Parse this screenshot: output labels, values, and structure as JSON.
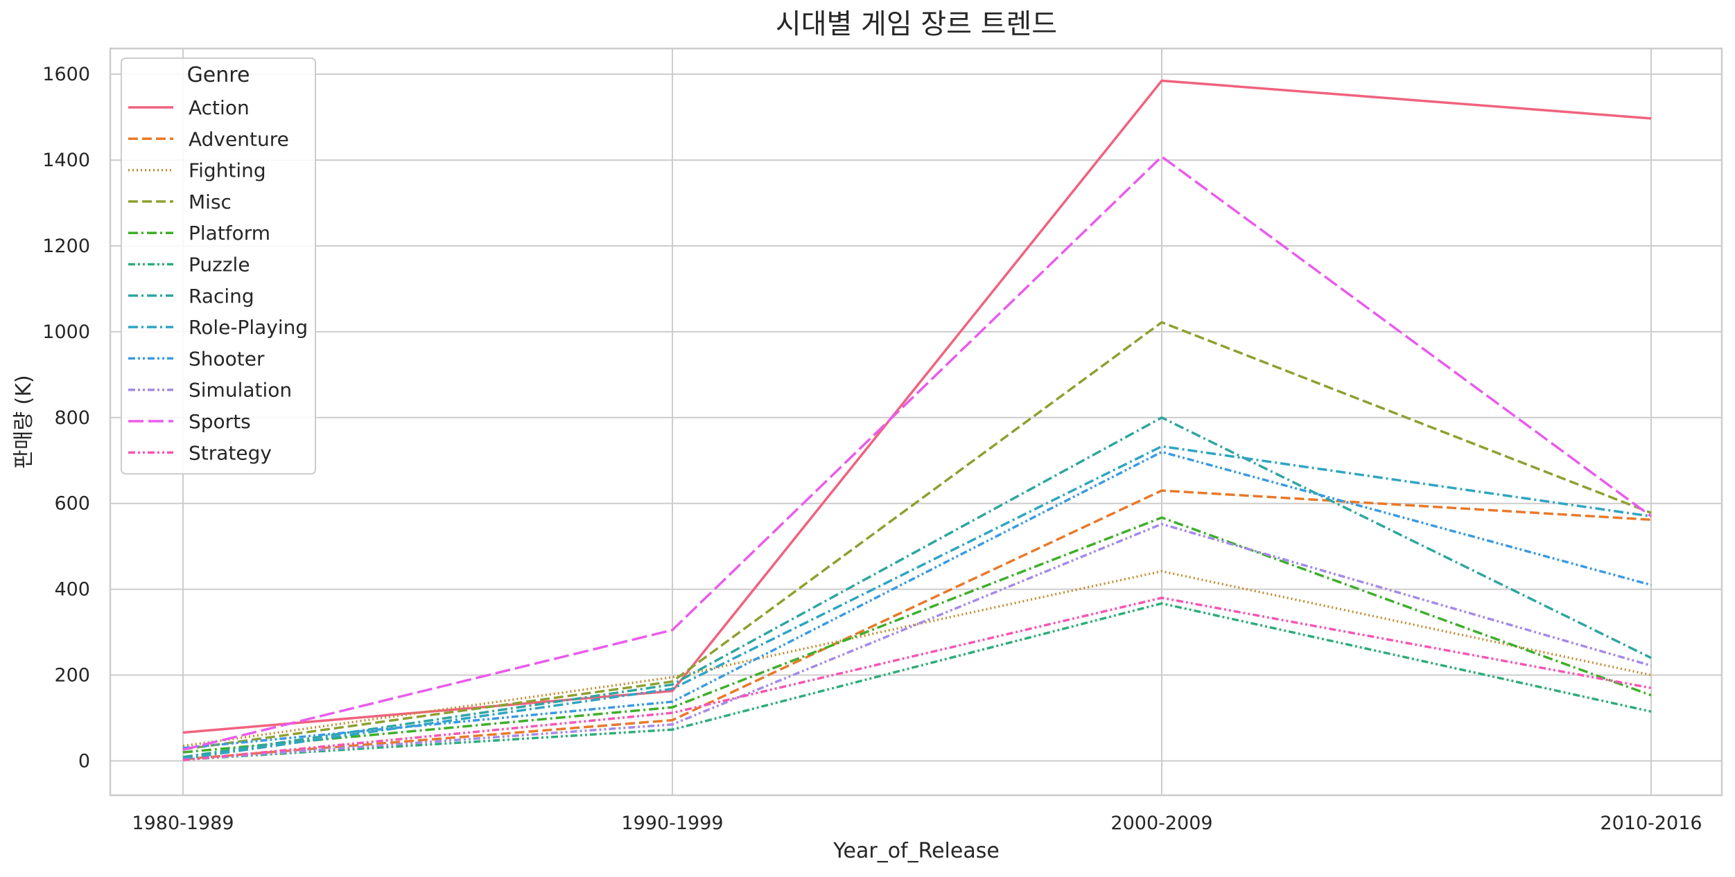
{
  "chart_data": {
    "type": "line",
    "title": "시대별 게임 장르 트렌드",
    "xlabel": "Year_of_Release",
    "ylabel": "판매량 (K)",
    "categories": [
      "1980-1989",
      "1990-1999",
      "2000-2009",
      "2010-2016"
    ],
    "ylim": [
      -80,
      1660
    ],
    "yticks": [
      0,
      200,
      400,
      600,
      800,
      1000,
      1200,
      1400,
      1600
    ],
    "grid": true,
    "legend_title": "Genre",
    "legend_position": "top-left",
    "series": [
      {
        "name": "Action",
        "color": "#f0627f",
        "dash": "solid",
        "values": [
          66,
          163,
          1585,
          1497
        ]
      },
      {
        "name": "Adventure",
        "color": "#e8792a",
        "dash": "dashed",
        "values": [
          4,
          95,
          630,
          562
        ]
      },
      {
        "name": "Fighting",
        "color": "#c18d31",
        "dash": "dotted",
        "values": [
          35,
          195,
          442,
          200
        ]
      },
      {
        "name": "Misc",
        "color": "#8ea030",
        "dash": "dashed",
        "values": [
          27,
          185,
          1022,
          578
        ]
      },
      {
        "name": "Platform",
        "color": "#3fae2c",
        "dash": "dashdot",
        "values": [
          20,
          125,
          567,
          153
        ]
      },
      {
        "name": "Puzzle",
        "color": "#2ead7a",
        "dash": "dashdotdot",
        "values": [
          3,
          73,
          367,
          115
        ]
      },
      {
        "name": "Racing",
        "color": "#2fa69f",
        "dash": "dashdot",
        "values": [
          9,
          178,
          800,
          240
        ]
      },
      {
        "name": "Role-Playing",
        "color": "#2fa5c2",
        "dash": "dashdot",
        "values": [
          5,
          168,
          733,
          570
        ]
      },
      {
        "name": "Shooter",
        "color": "#3a9ae2",
        "dash": "dashdotdot",
        "values": [
          30,
          138,
          720,
          410
        ]
      },
      {
        "name": "Simulation",
        "color": "#a48ae8",
        "dash": "dashdotdot",
        "values": [
          3,
          85,
          552,
          222
        ]
      },
      {
        "name": "Sports",
        "color": "#ea5bed",
        "dash": "longdash",
        "values": [
          26,
          305,
          1408,
          570
        ]
      },
      {
        "name": "Strategy",
        "color": "#f556b4",
        "dash": "dashdotdot",
        "values": [
          2,
          112,
          380,
          170
        ]
      }
    ]
  }
}
